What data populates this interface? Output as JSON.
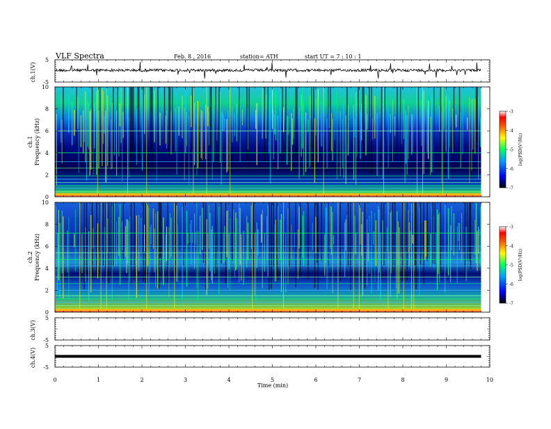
{
  "header": {
    "title": "VLF  Spectra",
    "date": "Feb. 8  , 2016",
    "station": "station= ATH",
    "start_ut": "start  UT  =    7  : 10 : 1"
  },
  "chart_data": [
    {
      "type": "line",
      "name": "ch1-waveform",
      "ylabel": "ch.1(V)",
      "ylim": [
        -5,
        5
      ],
      "yticks": [
        "5",
        "-5"
      ],
      "xlim": [
        0,
        10
      ],
      "baseline": 0.3
    },
    {
      "type": "heatmap",
      "name": "ch1-spectrogram",
      "ylabel": [
        "ch.1",
        "Frequency  (kHz)"
      ],
      "ylim": [
        0,
        10
      ],
      "yticks": [
        "0",
        "2",
        "4",
        "6",
        "8",
        "10"
      ],
      "xlim": [
        0,
        9.8
      ],
      "colorbar": {
        "label": "log(PSD(V²/Hz)",
        "range": [
          -7,
          -3
        ],
        "ticks": [
          "-3",
          "-4",
          "-5",
          "-6",
          "-7"
        ],
        "colors": [
          "#000000",
          "#0000ff",
          "#00a0ff",
          "#00ff60",
          "#ffff00",
          "#ff8000",
          "#ff0000",
          "#ffffff"
        ]
      },
      "horizontal_lines_khz": [
        0.2,
        0.5,
        0.8,
        1.0,
        1.3,
        1.6,
        1.9,
        2.6,
        3.2,
        4.0,
        6.0
      ]
    },
    {
      "type": "heatmap",
      "name": "ch2-spectrogram",
      "ylabel": [
        "ch.2",
        "Frequency  (kHz)"
      ],
      "ylim": [
        0,
        10
      ],
      "yticks": [
        "0",
        "2",
        "4",
        "6",
        "8",
        "10"
      ],
      "xlim": [
        0,
        9.8
      ],
      "colorbar": {
        "label": "log(PSD(V²/Hz)",
        "range": [
          -7,
          -3
        ],
        "ticks": [
          "-3",
          "-4",
          "-5",
          "-6",
          "-7"
        ],
        "colors": [
          "#000000",
          "#0000ff",
          "#00a0ff",
          "#00ff60",
          "#ffff00",
          "#ff8000",
          "#ff0000",
          "#ffffff"
        ]
      },
      "horizontal_lines_khz": [
        0.3,
        0.6,
        0.9,
        1.2,
        1.5,
        2.0,
        2.6,
        3.2,
        4.2,
        4.8,
        5.4,
        6.0,
        7.2
      ]
    },
    {
      "type": "line",
      "name": "ch3-waveform",
      "ylabel": "ch.3(V)",
      "ylim": [
        -5,
        5
      ],
      "yticks": [
        "5",
        "-5"
      ],
      "xlim": [
        0,
        10
      ]
    },
    {
      "type": "line",
      "name": "ch4-waveform",
      "ylabel": "ch.4(V)",
      "ylim": [
        -5,
        5
      ],
      "yticks": [
        "5",
        "-5"
      ],
      "xlim": [
        0,
        10
      ],
      "baseline": 0
    }
  ],
  "x_axis": {
    "label": "Time  (min)",
    "ticks": [
      "0",
      "1",
      "2",
      "3",
      "4",
      "5",
      "6",
      "7",
      "8",
      "9",
      "10"
    ],
    "range": [
      0,
      10
    ]
  }
}
